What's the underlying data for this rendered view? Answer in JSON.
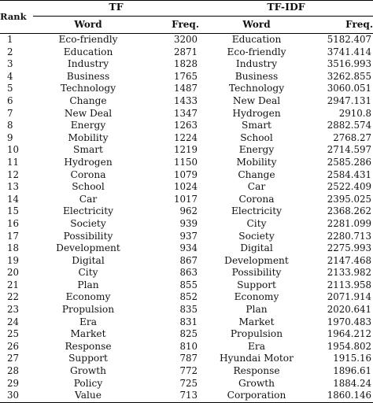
{
  "header": {
    "rank": "Rank",
    "tf_group": "TF",
    "tfidf_group": "TF-IDF",
    "tf_word": "Word",
    "tf_freq": "Freq.",
    "tfidf_word": "Word",
    "tfidf_freq": "Freq."
  },
  "rows": [
    {
      "rank": "1",
      "tf_word": "Eco-friendly",
      "tf_freq": "3200",
      "tfidf_word": "Education",
      "tfidf_freq": "5182.407"
    },
    {
      "rank": "2",
      "tf_word": "Education",
      "tf_freq": "2871",
      "tfidf_word": "Eco-friendly",
      "tfidf_freq": "3741.414"
    },
    {
      "rank": "3",
      "tf_word": "Industry",
      "tf_freq": "1828",
      "tfidf_word": "Industry",
      "tfidf_freq": "3516.993"
    },
    {
      "rank": "4",
      "tf_word": "Business",
      "tf_freq": "1765",
      "tfidf_word": "Business",
      "tfidf_freq": "3262.855"
    },
    {
      "rank": "5",
      "tf_word": "Technology",
      "tf_freq": "1487",
      "tfidf_word": "Technology",
      "tfidf_freq": "3060.051"
    },
    {
      "rank": "6",
      "tf_word": "Change",
      "tf_freq": "1433",
      "tfidf_word": "New Deal",
      "tfidf_freq": "2947.131"
    },
    {
      "rank": "7",
      "tf_word": "New Deal",
      "tf_freq": "1347",
      "tfidf_word": "Hydrogen",
      "tfidf_freq": "2910.8"
    },
    {
      "rank": "8",
      "tf_word": "Energy",
      "tf_freq": "1263",
      "tfidf_word": "Smart",
      "tfidf_freq": "2882.574"
    },
    {
      "rank": "9",
      "tf_word": "Mobility",
      "tf_freq": "1224",
      "tfidf_word": "School",
      "tfidf_freq": "2768.27"
    },
    {
      "rank": "10",
      "tf_word": "Smart",
      "tf_freq": "1219",
      "tfidf_word": "Energy",
      "tfidf_freq": "2714.597"
    },
    {
      "rank": "11",
      "tf_word": "Hydrogen",
      "tf_freq": "1150",
      "tfidf_word": "Mobility",
      "tfidf_freq": "2585.286"
    },
    {
      "rank": "12",
      "tf_word": "Corona",
      "tf_freq": "1079",
      "tfidf_word": "Change",
      "tfidf_freq": "2584.431"
    },
    {
      "rank": "13",
      "tf_word": "School",
      "tf_freq": "1024",
      "tfidf_word": "Car",
      "tfidf_freq": "2522.409"
    },
    {
      "rank": "14",
      "tf_word": "Car",
      "tf_freq": "1017",
      "tfidf_word": "Corona",
      "tfidf_freq": "2395.025"
    },
    {
      "rank": "15",
      "tf_word": "Electricity",
      "tf_freq": "962",
      "tfidf_word": "Electricity",
      "tfidf_freq": "2368.262"
    },
    {
      "rank": "16",
      "tf_word": "Society",
      "tf_freq": "939",
      "tfidf_word": "City",
      "tfidf_freq": "2281.099"
    },
    {
      "rank": "17",
      "tf_word": "Possibility",
      "tf_freq": "937",
      "tfidf_word": "Society",
      "tfidf_freq": "2280.713"
    },
    {
      "rank": "18",
      "tf_word": "Development",
      "tf_freq": "934",
      "tfidf_word": "Digital",
      "tfidf_freq": "2275.993"
    },
    {
      "rank": "19",
      "tf_word": "Digital",
      "tf_freq": "867",
      "tfidf_word": "Development",
      "tfidf_freq": "2147.468"
    },
    {
      "rank": "20",
      "tf_word": "City",
      "tf_freq": "863",
      "tfidf_word": "Possibility",
      "tfidf_freq": "2133.982"
    },
    {
      "rank": "21",
      "tf_word": "Plan",
      "tf_freq": "855",
      "tfidf_word": "Support",
      "tfidf_freq": "2113.958"
    },
    {
      "rank": "22",
      "tf_word": "Economy",
      "tf_freq": "852",
      "tfidf_word": "Economy",
      "tfidf_freq": "2071.914"
    },
    {
      "rank": "23",
      "tf_word": "Propulsion",
      "tf_freq": "835",
      "tfidf_word": "Plan",
      "tfidf_freq": "2020.641"
    },
    {
      "rank": "24",
      "tf_word": "Era",
      "tf_freq": "831",
      "tfidf_word": "Market",
      "tfidf_freq": "1970.483"
    },
    {
      "rank": "25",
      "tf_word": "Market",
      "tf_freq": "825",
      "tfidf_word": "Propulsion",
      "tfidf_freq": "1964.212"
    },
    {
      "rank": "26",
      "tf_word": "Response",
      "tf_freq": "810",
      "tfidf_word": "Era",
      "tfidf_freq": "1954.802"
    },
    {
      "rank": "27",
      "tf_word": "Support",
      "tf_freq": "787",
      "tfidf_word": "Hyundai Motor",
      "tfidf_freq": "1915.16"
    },
    {
      "rank": "28",
      "tf_word": "Growth",
      "tf_freq": "772",
      "tfidf_word": "Response",
      "tfidf_freq": "1896.61"
    },
    {
      "rank": "29",
      "tf_word": "Policy",
      "tf_freq": "725",
      "tfidf_word": "Growth",
      "tfidf_freq": "1884.24"
    },
    {
      "rank": "30",
      "tf_word": "Value",
      "tf_freq": "713",
      "tfidf_word": "Corporation",
      "tfidf_freq": "1860.146"
    }
  ]
}
